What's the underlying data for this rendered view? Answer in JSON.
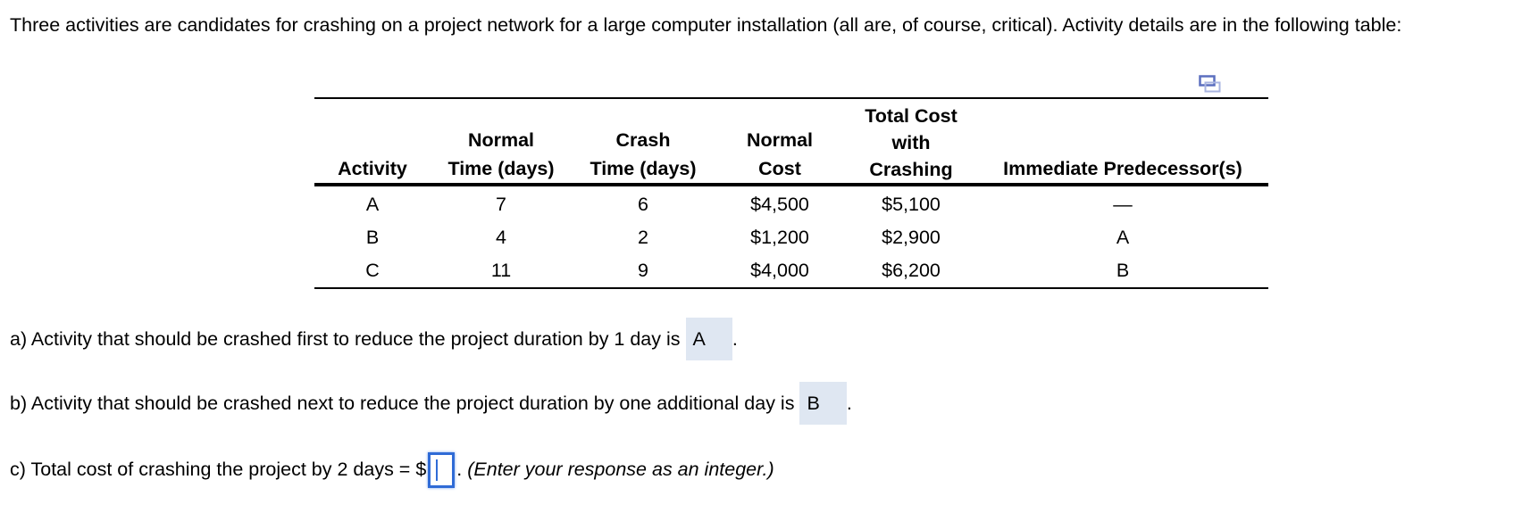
{
  "intro": "Three activities are candidates for crashing on a project network for a large computer installation (all are, of course, critical). Activity details are in the following table:",
  "table": {
    "headers": [
      [
        "Activity"
      ],
      [
        "Normal",
        "Time (days)"
      ],
      [
        "Crash",
        "Time (days)"
      ],
      [
        "Normal",
        "Cost"
      ],
      [
        "Total Cost",
        "with",
        "Crashing"
      ],
      [
        "Immediate Predecessor(s)"
      ]
    ],
    "rows": [
      [
        "A",
        "7",
        "6",
        "$4,500",
        "$5,100",
        "—"
      ],
      [
        "B",
        "4",
        "2",
        "$1,200",
        "$2,900",
        "A"
      ],
      [
        "C",
        "11",
        "9",
        "$4,000",
        "$6,200",
        "B"
      ]
    ]
  },
  "questions": {
    "a": {
      "text": "a) Activity that should be crashed first to reduce the project duration by 1 day is",
      "answer": "A",
      "end": "."
    },
    "b": {
      "text": "b) Activity that should be crashed next to reduce the project duration by one additional day is",
      "answer": "B",
      "end": "."
    },
    "c": {
      "text": "c) Total cost of crashing the project by 2 days = $",
      "value": "",
      "end": ".",
      "hint": "(Enter your response as an integer.)"
    }
  },
  "colors": {
    "accent": "#2f6bd6",
    "answer_bg": "#dfe7f2"
  }
}
